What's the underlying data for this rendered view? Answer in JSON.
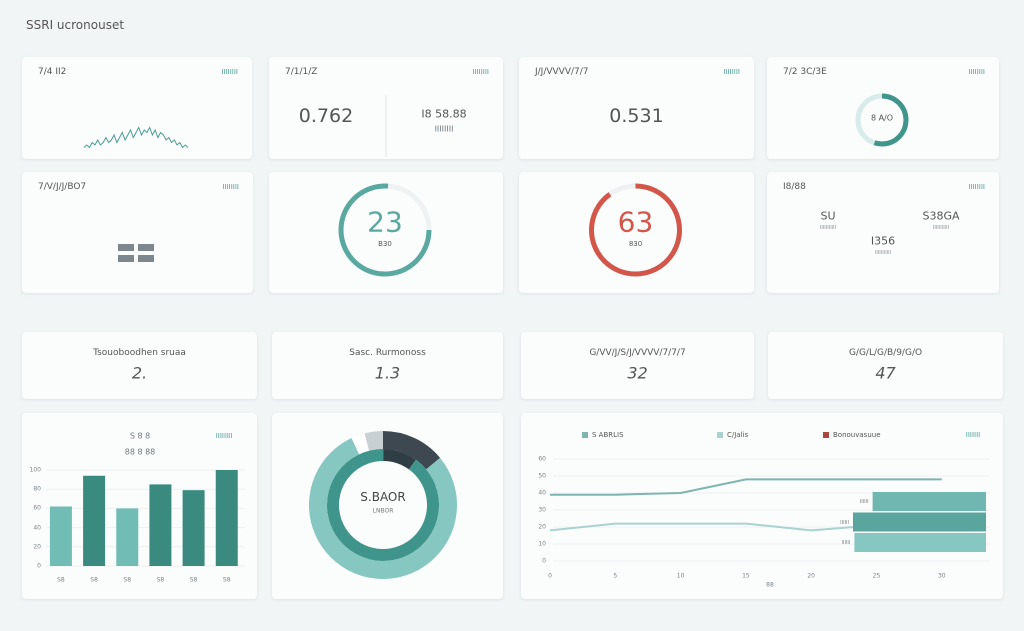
{
  "header": {
    "title": "SSRI ucronouset"
  },
  "cards": [
    {
      "label": "7/4 II2",
      "tag": "IIIIIIII",
      "sparkline": [
        1,
        2,
        1,
        3,
        2,
        4,
        2,
        3,
        5,
        3,
        4,
        6,
        3,
        5,
        7,
        4,
        6,
        8,
        5,
        7,
        9,
        6,
        8,
        7,
        9,
        6,
        8,
        5,
        7,
        6,
        4,
        5,
        3,
        4,
        2,
        3,
        1,
        2,
        1
      ]
    },
    {
      "label": "7/1/1/Z",
      "tag": "IIIIIIII",
      "value": "0.762",
      "side_value": "I8 58.88",
      "side_note": "IIIIIIII"
    },
    {
      "label": "J/J/VVVV/7/7",
      "tag": "IIIIIIII",
      "value": "0.531"
    },
    {
      "label": "7/2 3C/3E",
      "tag": "IIIIIIII",
      "donut": {
        "center": "8 A/O",
        "percent": 55
      }
    },
    {
      "label": "7/V/J/J/BO7",
      "tag": "IIIIIIII"
    },
    {
      "gauge": {
        "value": "23",
        "note": "B30",
        "percent": 76
      }
    },
    {
      "gauge": {
        "value": "63",
        "note": "830",
        "percent": 90
      }
    },
    {
      "label": "I8/88",
      "tag": "IIIIIIII",
      "stats": [
        {
          "value": "SU",
          "note": "IIIIIIIIIII"
        },
        {
          "value": "S38GA",
          "note": "IIIIIIIIIII"
        },
        {
          "value": "I356",
          "note": "IIIIIIIIIII"
        }
      ]
    }
  ],
  "kpis": [
    {
      "label": "Tsouoboodhen sruaa",
      "value": "2."
    },
    {
      "label": "Sasc. Rurmonoss",
      "value": "1.3"
    },
    {
      "label": "G/VV/J/S/J/VVVV/7/7/7",
      "value": "32"
    },
    {
      "label": "G/G/L/G/B/9/G/O",
      "value": "47"
    }
  ],
  "bar_chart": {
    "type": "bar",
    "title": "S 8 8",
    "tag": "IIIIIIII",
    "legend_text": "88 8 88",
    "categories": [
      "S8",
      "S8",
      "S8",
      "S8",
      "S8",
      "S8"
    ],
    "values": [
      62,
      94,
      60,
      85,
      79,
      100
    ],
    "colors": [
      "#71bdb6",
      "#3a8a80",
      "#71bdb6",
      "#3a8a80",
      "#3a8a80",
      "#3a8a80"
    ],
    "ylim": [
      0,
      100
    ],
    "yticks": [
      0,
      20,
      40,
      60,
      80,
      100
    ]
  },
  "donut_chart": {
    "type": "pie",
    "center": "S.BAOR",
    "note": "LNBOR",
    "outer": {
      "values": [
        14,
        79,
        3,
        4
      ],
      "colors": [
        "#3d4850",
        "#86c7c1",
        "#ffffff",
        "#c9d0d3"
      ]
    },
    "inner": {
      "values": [
        10,
        90
      ],
      "colors": [
        "#2f3d44",
        "#3f958b"
      ]
    }
  },
  "line_chart": {
    "type": "line",
    "tag": "IIIIIII",
    "categories": [
      "0",
      "5",
      "10",
      "15",
      "20",
      "25",
      "30"
    ],
    "x_label": "88",
    "series": [
      {
        "name": "S ABRLIS",
        "color": "#7fb5b0",
        "values": [
          39,
          39,
          40,
          48,
          48,
          48,
          48
        ]
      },
      {
        "name": "C/Jalis",
        "color": "#a9d3cf",
        "values": [
          18,
          22,
          22,
          22,
          18,
          21,
          null
        ]
      },
      {
        "name": "Bonouvasuue",
        "color": "#a8473d",
        "values": []
      }
    ],
    "ylim": [
      0,
      60
    ],
    "yticks": [
      0,
      10,
      20,
      30,
      40,
      50,
      60
    ],
    "hbars": {
      "labels": [
        "IIIIII",
        "IIIIII",
        "IIIIII"
      ],
      "values": [
        81,
        95,
        94
      ],
      "colors": [
        "#6fb7b0",
        "#5aa59e",
        "#86c7c1"
      ],
      "xlim": [
        0,
        100
      ]
    }
  }
}
